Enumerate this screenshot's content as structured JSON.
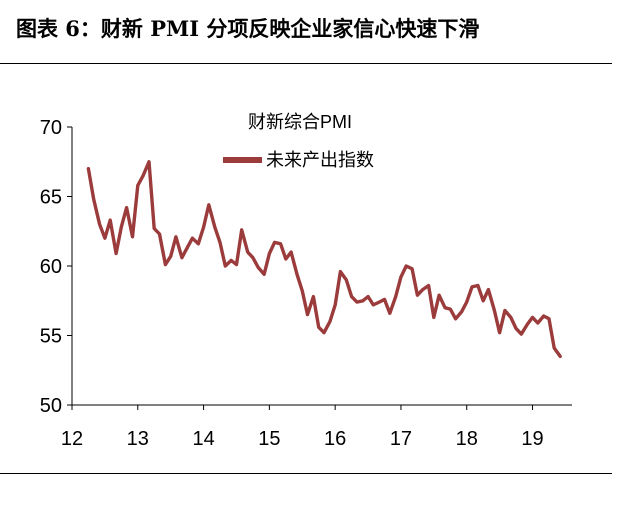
{
  "figure": {
    "title": "图表 6：财新 PMI 分项反映企业家信心快速下滑"
  },
  "colors": {
    "series": "#9b3b3b",
    "text": "#000000"
  },
  "chart_data": {
    "type": "line",
    "title": "财新综合PMI",
    "xlabel": "",
    "ylabel": "",
    "legend_position": "top-center",
    "grid": false,
    "xlim": [
      2012,
      2019.6
    ],
    "ylim": [
      50,
      70
    ],
    "x_ticks": [
      2012,
      2013,
      2014,
      2015,
      2016,
      2017,
      2018,
      2019
    ],
    "x_tick_labels": [
      "12",
      "13",
      "14",
      "15",
      "16",
      "17",
      "18",
      "19"
    ],
    "y_ticks": [
      50,
      55,
      60,
      65,
      70
    ],
    "y_tick_labels": [
      "50",
      "55",
      "60",
      "65",
      "70"
    ],
    "series": [
      {
        "name": "未来产出指数",
        "x": [
          2012.25,
          2012.33,
          2012.42,
          2012.5,
          2012.58,
          2012.67,
          2012.75,
          2012.83,
          2012.92,
          2013.0,
          2013.08,
          2013.17,
          2013.25,
          2013.33,
          2013.42,
          2013.5,
          2013.58,
          2013.67,
          2013.75,
          2013.83,
          2013.92,
          2014.0,
          2014.08,
          2014.17,
          2014.25,
          2014.33,
          2014.42,
          2014.5,
          2014.58,
          2014.67,
          2014.75,
          2014.83,
          2014.92,
          2015.0,
          2015.08,
          2015.17,
          2015.25,
          2015.33,
          2015.42,
          2015.5,
          2015.58,
          2015.67,
          2015.75,
          2015.83,
          2015.92,
          2016.0,
          2016.08,
          2016.17,
          2016.25,
          2016.33,
          2016.42,
          2016.5,
          2016.58,
          2016.67,
          2016.75,
          2016.83,
          2016.92,
          2017.0,
          2017.08,
          2017.17,
          2017.25,
          2017.33,
          2017.42,
          2017.5,
          2017.58,
          2017.67,
          2017.75,
          2017.83,
          2017.92,
          2018.0,
          2018.08,
          2018.17,
          2018.25,
          2018.33,
          2018.42,
          2018.5,
          2018.58,
          2018.67,
          2018.75,
          2018.83,
          2018.92,
          2019.0,
          2019.08,
          2019.17,
          2019.25,
          2019.33,
          2019.42
        ],
        "values": [
          67.0,
          64.8,
          63.0,
          62.0,
          63.3,
          60.9,
          62.8,
          64.2,
          62.1,
          65.8,
          66.5,
          67.5,
          62.7,
          62.3,
          60.1,
          60.7,
          62.1,
          60.6,
          61.3,
          62.0,
          61.6,
          62.8,
          64.4,
          62.8,
          61.7,
          60.0,
          60.4,
          60.1,
          62.6,
          61.0,
          60.6,
          59.9,
          59.4,
          60.9,
          61.7,
          61.6,
          60.5,
          61.0,
          59.4,
          58.2,
          56.5,
          57.8,
          55.6,
          55.2,
          56.0,
          57.2,
          59.6,
          59.0,
          57.8,
          57.4,
          57.5,
          57.8,
          57.2,
          57.4,
          57.6,
          56.6,
          57.8,
          59.2,
          60.0,
          59.8,
          57.9,
          58.3,
          58.6,
          56.3,
          57.9,
          57.0,
          56.9,
          56.2,
          56.7,
          57.4,
          58.5,
          58.6,
          57.5,
          58.3,
          56.8,
          55.2,
          56.8,
          56.3,
          55.5,
          55.1,
          55.8,
          56.3,
          55.9,
          56.4,
          56.2,
          54.1,
          53.5
        ]
      }
    ]
  }
}
